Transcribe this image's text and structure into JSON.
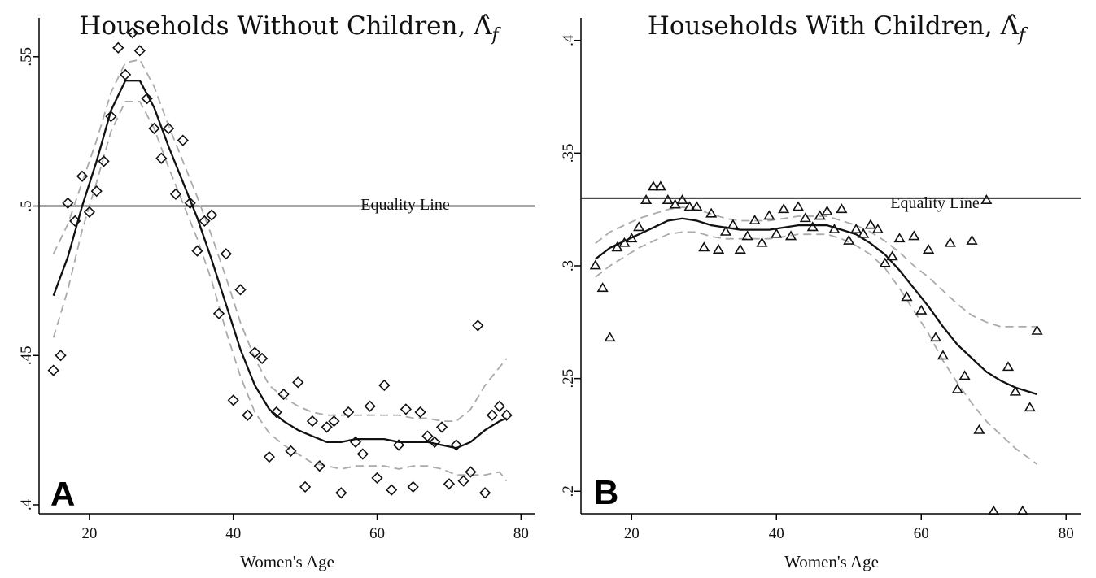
{
  "chart_data": [
    {
      "type": "scatter",
      "panel_label": "A",
      "title": "Households Without Children, Λ̂",
      "title_subscript": "f",
      "xlabel": "Women's Age",
      "xlim": [
        13,
        82
      ],
      "ylim": [
        0.397,
        0.563
      ],
      "xticks": [
        20,
        40,
        60,
        80
      ],
      "yticks": [
        0.4,
        0.45,
        0.5,
        0.55
      ],
      "ytick_labels": [
        ".4",
        ".45",
        ".5",
        ".55"
      ],
      "marker": "diamond",
      "equality_line": {
        "y": 0.5,
        "label": "Equality Line"
      },
      "points": [
        [
          15,
          0.445
        ],
        [
          16,
          0.45
        ],
        [
          17,
          0.501
        ],
        [
          18,
          0.495
        ],
        [
          19,
          0.51
        ],
        [
          20,
          0.498
        ],
        [
          21,
          0.505
        ],
        [
          22,
          0.515
        ],
        [
          23,
          0.53
        ],
        [
          24,
          0.553
        ],
        [
          25,
          0.544
        ],
        [
          26,
          0.558
        ],
        [
          27,
          0.552
        ],
        [
          28,
          0.536
        ],
        [
          29,
          0.526
        ],
        [
          30,
          0.516
        ],
        [
          31,
          0.526
        ],
        [
          32,
          0.504
        ],
        [
          33,
          0.522
        ],
        [
          34,
          0.501
        ],
        [
          35,
          0.485
        ],
        [
          36,
          0.495
        ],
        [
          37,
          0.497
        ],
        [
          38,
          0.464
        ],
        [
          39,
          0.484
        ],
        [
          40,
          0.435
        ],
        [
          41,
          0.472
        ],
        [
          42,
          0.43
        ],
        [
          43,
          0.451
        ],
        [
          44,
          0.449
        ],
        [
          45,
          0.416
        ],
        [
          46,
          0.431
        ],
        [
          47,
          0.437
        ],
        [
          48,
          0.418
        ],
        [
          49,
          0.441
        ],
        [
          50,
          0.406
        ],
        [
          51,
          0.428
        ],
        [
          52,
          0.413
        ],
        [
          53,
          0.426
        ],
        [
          54,
          0.428
        ],
        [
          55,
          0.404
        ],
        [
          56,
          0.431
        ],
        [
          57,
          0.421
        ],
        [
          58,
          0.417
        ],
        [
          59,
          0.433
        ],
        [
          60,
          0.409
        ],
        [
          61,
          0.44
        ],
        [
          62,
          0.405
        ],
        [
          63,
          0.42
        ],
        [
          64,
          0.432
        ],
        [
          65,
          0.406
        ],
        [
          66,
          0.431
        ],
        [
          67,
          0.423
        ],
        [
          68,
          0.421
        ],
        [
          69,
          0.426
        ],
        [
          70,
          0.407
        ],
        [
          71,
          0.42
        ],
        [
          72,
          0.408
        ],
        [
          73,
          0.411
        ],
        [
          74,
          0.46
        ],
        [
          75,
          0.404
        ],
        [
          76,
          0.43
        ],
        [
          77,
          0.433
        ],
        [
          78,
          0.43
        ]
      ],
      "fit": [
        [
          15,
          0.47
        ],
        [
          17,
          0.483
        ],
        [
          19,
          0.5
        ],
        [
          21,
          0.515
        ],
        [
          23,
          0.532
        ],
        [
          25,
          0.542
        ],
        [
          27,
          0.542
        ],
        [
          29,
          0.533
        ],
        [
          31,
          0.52
        ],
        [
          33,
          0.508
        ],
        [
          35,
          0.496
        ],
        [
          37,
          0.482
        ],
        [
          39,
          0.467
        ],
        [
          41,
          0.452
        ],
        [
          43,
          0.44
        ],
        [
          45,
          0.432
        ],
        [
          47,
          0.428
        ],
        [
          49,
          0.425
        ],
        [
          51,
          0.423
        ],
        [
          53,
          0.421
        ],
        [
          55,
          0.421
        ],
        [
          57,
          0.422
        ],
        [
          59,
          0.422
        ],
        [
          61,
          0.422
        ],
        [
          63,
          0.421
        ],
        [
          65,
          0.421
        ],
        [
          67,
          0.421
        ],
        [
          69,
          0.42
        ],
        [
          71,
          0.419
        ],
        [
          73,
          0.421
        ],
        [
          75,
          0.425
        ],
        [
          77,
          0.428
        ],
        [
          78,
          0.429
        ]
      ],
      "ci_upper": [
        [
          15,
          0.484
        ],
        [
          17,
          0.494
        ],
        [
          19,
          0.508
        ],
        [
          21,
          0.522
        ],
        [
          23,
          0.538
        ],
        [
          25,
          0.548
        ],
        [
          27,
          0.549
        ],
        [
          29,
          0.54
        ],
        [
          31,
          0.527
        ],
        [
          33,
          0.515
        ],
        [
          35,
          0.503
        ],
        [
          37,
          0.49
        ],
        [
          39,
          0.476
        ],
        [
          41,
          0.461
        ],
        [
          43,
          0.449
        ],
        [
          45,
          0.44
        ],
        [
          47,
          0.436
        ],
        [
          49,
          0.433
        ],
        [
          51,
          0.431
        ],
        [
          53,
          0.43
        ],
        [
          55,
          0.43
        ],
        [
          57,
          0.43
        ],
        [
          59,
          0.43
        ],
        [
          61,
          0.43
        ],
        [
          63,
          0.43
        ],
        [
          65,
          0.429
        ],
        [
          67,
          0.429
        ],
        [
          69,
          0.428
        ],
        [
          71,
          0.428
        ],
        [
          73,
          0.432
        ],
        [
          75,
          0.44
        ],
        [
          77,
          0.446
        ],
        [
          78,
          0.449
        ]
      ],
      "ci_lower": [
        [
          15,
          0.456
        ],
        [
          17,
          0.472
        ],
        [
          19,
          0.492
        ],
        [
          21,
          0.508
        ],
        [
          23,
          0.525
        ],
        [
          25,
          0.535
        ],
        [
          27,
          0.535
        ],
        [
          29,
          0.526
        ],
        [
          31,
          0.513
        ],
        [
          33,
          0.501
        ],
        [
          35,
          0.489
        ],
        [
          37,
          0.475
        ],
        [
          39,
          0.458
        ],
        [
          41,
          0.443
        ],
        [
          43,
          0.431
        ],
        [
          45,
          0.424
        ],
        [
          47,
          0.42
        ],
        [
          49,
          0.417
        ],
        [
          51,
          0.414
        ],
        [
          53,
          0.413
        ],
        [
          55,
          0.412
        ],
        [
          57,
          0.413
        ],
        [
          59,
          0.413
        ],
        [
          61,
          0.413
        ],
        [
          63,
          0.412
        ],
        [
          65,
          0.413
        ],
        [
          67,
          0.413
        ],
        [
          69,
          0.412
        ],
        [
          71,
          0.41
        ],
        [
          73,
          0.41
        ],
        [
          75,
          0.41
        ],
        [
          77,
          0.411
        ],
        [
          78,
          0.408
        ]
      ]
    },
    {
      "type": "scatter",
      "panel_label": "B",
      "title": "Households With Children, Λ̂",
      "title_subscript": "f",
      "xlabel": "Women's Age",
      "xlim": [
        13,
        82
      ],
      "ylim": [
        0.19,
        0.41
      ],
      "xticks": [
        20,
        40,
        60,
        80
      ],
      "yticks": [
        0.2,
        0.25,
        0.3,
        0.35,
        0.4
      ],
      "ytick_labels": [
        ".2",
        ".25",
        ".3",
        ".35",
        ".4"
      ],
      "marker": "triangle",
      "equality_line": {
        "y": 0.33,
        "label": "Equality Line"
      },
      "points": [
        [
          15,
          0.3
        ],
        [
          16,
          0.29
        ],
        [
          17,
          0.268
        ],
        [
          18,
          0.308
        ],
        [
          19,
          0.31
        ],
        [
          20,
          0.312
        ],
        [
          21,
          0.317
        ],
        [
          22,
          0.329
        ],
        [
          23,
          0.335
        ],
        [
          24,
          0.335
        ],
        [
          25,
          0.329
        ],
        [
          26,
          0.327
        ],
        [
          27,
          0.329
        ],
        [
          28,
          0.326
        ],
        [
          29,
          0.326
        ],
        [
          30,
          0.308
        ],
        [
          31,
          0.323
        ],
        [
          32,
          0.307
        ],
        [
          33,
          0.315
        ],
        [
          34,
          0.318
        ],
        [
          35,
          0.307
        ],
        [
          36,
          0.313
        ],
        [
          37,
          0.32
        ],
        [
          38,
          0.31
        ],
        [
          39,
          0.322
        ],
        [
          40,
          0.314
        ],
        [
          41,
          0.325
        ],
        [
          42,
          0.313
        ],
        [
          43,
          0.326
        ],
        [
          44,
          0.321
        ],
        [
          45,
          0.317
        ],
        [
          46,
          0.322
        ],
        [
          47,
          0.324
        ],
        [
          48,
          0.316
        ],
        [
          49,
          0.325
        ],
        [
          50,
          0.311
        ],
        [
          51,
          0.316
        ],
        [
          52,
          0.314
        ],
        [
          53,
          0.318
        ],
        [
          54,
          0.316
        ],
        [
          55,
          0.301
        ],
        [
          56,
          0.304
        ],
        [
          57,
          0.312
        ],
        [
          58,
          0.286
        ],
        [
          59,
          0.313
        ],
        [
          60,
          0.28
        ],
        [
          61,
          0.307
        ],
        [
          62,
          0.268
        ],
        [
          63,
          0.26
        ],
        [
          64,
          0.31
        ],
        [
          65,
          0.245
        ],
        [
          66,
          0.251
        ],
        [
          67,
          0.311
        ],
        [
          68,
          0.227
        ],
        [
          69,
          0.329
        ],
        [
          70,
          0.191
        ],
        [
          72,
          0.255
        ],
        [
          73,
          0.244
        ],
        [
          74,
          0.191
        ],
        [
          75,
          0.237
        ],
        [
          76,
          0.271
        ]
      ],
      "fit": [
        [
          15,
          0.303
        ],
        [
          17,
          0.308
        ],
        [
          19,
          0.311
        ],
        [
          21,
          0.314
        ],
        [
          23,
          0.317
        ],
        [
          25,
          0.32
        ],
        [
          27,
          0.321
        ],
        [
          29,
          0.32
        ],
        [
          31,
          0.318
        ],
        [
          33,
          0.317
        ],
        [
          35,
          0.316
        ],
        [
          37,
          0.316
        ],
        [
          39,
          0.316
        ],
        [
          41,
          0.317
        ],
        [
          43,
          0.318
        ],
        [
          45,
          0.318
        ],
        [
          47,
          0.318
        ],
        [
          49,
          0.316
        ],
        [
          51,
          0.314
        ],
        [
          53,
          0.31
        ],
        [
          55,
          0.305
        ],
        [
          57,
          0.298
        ],
        [
          59,
          0.29
        ],
        [
          61,
          0.282
        ],
        [
          63,
          0.273
        ],
        [
          65,
          0.265
        ],
        [
          67,
          0.259
        ],
        [
          69,
          0.253
        ],
        [
          71,
          0.249
        ],
        [
          73,
          0.246
        ],
        [
          76,
          0.243
        ]
      ],
      "ci_upper": [
        [
          15,
          0.31
        ],
        [
          17,
          0.315
        ],
        [
          19,
          0.318
        ],
        [
          21,
          0.321
        ],
        [
          23,
          0.323
        ],
        [
          25,
          0.325
        ],
        [
          27,
          0.326
        ],
        [
          29,
          0.325
        ],
        [
          31,
          0.323
        ],
        [
          33,
          0.321
        ],
        [
          35,
          0.32
        ],
        [
          37,
          0.32
        ],
        [
          39,
          0.32
        ],
        [
          41,
          0.321
        ],
        [
          43,
          0.322
        ],
        [
          45,
          0.322
        ],
        [
          47,
          0.322
        ],
        [
          49,
          0.32
        ],
        [
          51,
          0.318
        ],
        [
          53,
          0.315
        ],
        [
          55,
          0.311
        ],
        [
          57,
          0.306
        ],
        [
          59,
          0.3
        ],
        [
          61,
          0.295
        ],
        [
          63,
          0.289
        ],
        [
          65,
          0.283
        ],
        [
          67,
          0.278
        ],
        [
          69,
          0.275
        ],
        [
          71,
          0.273
        ],
        [
          73,
          0.273
        ],
        [
          76,
          0.273
        ]
      ],
      "ci_lower": [
        [
          15,
          0.295
        ],
        [
          17,
          0.3
        ],
        [
          19,
          0.304
        ],
        [
          21,
          0.308
        ],
        [
          23,
          0.311
        ],
        [
          25,
          0.314
        ],
        [
          27,
          0.315
        ],
        [
          29,
          0.315
        ],
        [
          31,
          0.313
        ],
        [
          33,
          0.312
        ],
        [
          35,
          0.312
        ],
        [
          37,
          0.312
        ],
        [
          39,
          0.312
        ],
        [
          41,
          0.313
        ],
        [
          43,
          0.314
        ],
        [
          45,
          0.314
        ],
        [
          47,
          0.314
        ],
        [
          49,
          0.312
        ],
        [
          51,
          0.309
        ],
        [
          53,
          0.305
        ],
        [
          55,
          0.299
        ],
        [
          57,
          0.29
        ],
        [
          59,
          0.28
        ],
        [
          61,
          0.27
        ],
        [
          63,
          0.258
        ],
        [
          65,
          0.248
        ],
        [
          67,
          0.239
        ],
        [
          69,
          0.231
        ],
        [
          71,
          0.225
        ],
        [
          73,
          0.219
        ],
        [
          76,
          0.212
        ]
      ]
    }
  ]
}
